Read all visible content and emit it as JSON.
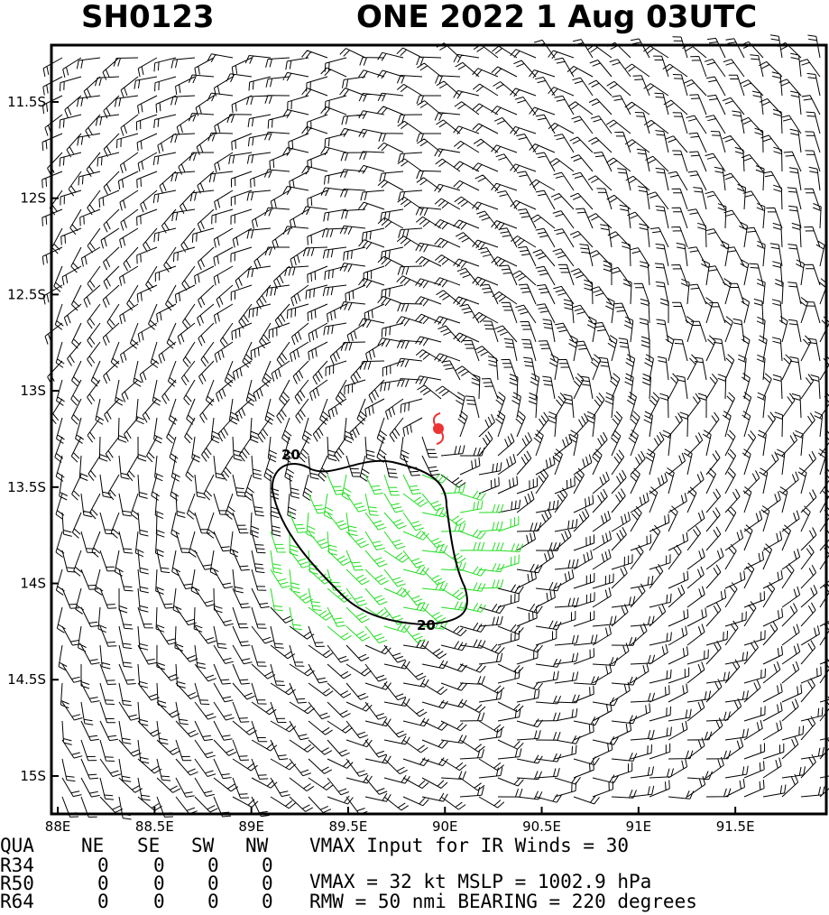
{
  "header": {
    "left": "SH0123",
    "right": "ONE 2022  1 Aug 03UTC"
  },
  "map": {
    "xlim": [
      87.967,
      91.97
    ],
    "ylim": [
      -15.197,
      -11.205
    ],
    "xticks": [
      {
        "value": 88,
        "label": "88E"
      },
      {
        "value": 88.5,
        "label": "88.5E"
      },
      {
        "value": 89,
        "label": "89E"
      },
      {
        "value": 89.5,
        "label": "89.5E"
      },
      {
        "value": 90,
        "label": "90E"
      },
      {
        "value": 90.5,
        "label": "90.5E"
      },
      {
        "value": 91,
        "label": "91E"
      },
      {
        "value": 91.5,
        "label": "91.5E"
      }
    ],
    "yticks": [
      {
        "value": -11.5,
        "label": "11.5S"
      },
      {
        "value": -12,
        "label": "12S"
      },
      {
        "value": -12.5,
        "label": "12.5S"
      },
      {
        "value": -13,
        "label": "13S"
      },
      {
        "value": -13.5,
        "label": "13.5S"
      },
      {
        "value": -14,
        "label": "14S"
      },
      {
        "value": -14.5,
        "label": "14.5S"
      },
      {
        "value": -15,
        "label": "15S"
      }
    ],
    "contour_labels": [
      "20",
      "20"
    ]
  },
  "table": {
    "header": [
      "QUA",
      "NE",
      "SE",
      "SW",
      "NW"
    ],
    "rows": [
      [
        "R34",
        "0",
        "0",
        "0",
        "0"
      ],
      [
        "R50",
        "0",
        "0",
        "0",
        "0"
      ],
      [
        "R64",
        "0",
        "0",
        "0",
        "0"
      ]
    ]
  },
  "info": [
    "VMAX Input for IR Winds =   30",
    "VMAX =    32 kt MSLP = 1002.9 hPa",
    "RMW  =   50 nmi BEARING =  220 degrees"
  ]
}
